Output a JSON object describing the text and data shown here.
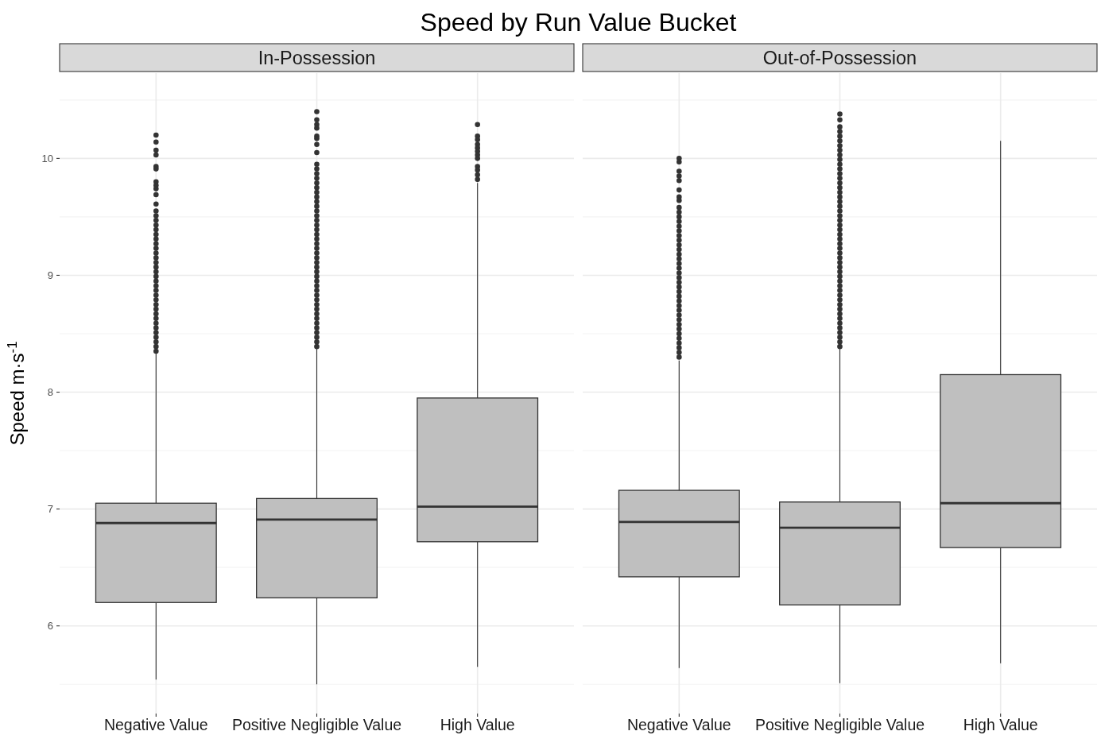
{
  "chart_data": [
    {
      "type": "box",
      "title": "Speed by Run Value Bucket",
      "subtitle": "In-Possession",
      "ylabel": "Speed m·s$^{-1}$",
      "categories": [
        "Negative Value",
        "Positive Negligible Value",
        "High Value"
      ],
      "series": [
        {
          "color": "#bfbfbf",
          "boxes": [
            {
              "low": 5.54,
              "q1": 6.2,
              "median": 6.88,
              "q3": 7.05,
              "high": 8.33,
              "outliers": [
                10.2,
                10.14,
                10.07,
                10.03,
                9.93,
                9.91,
                9.8,
                9.77,
                9.74,
                9.69,
                9.61,
                9.55,
                9.51,
                9.47,
                9.43,
                9.39,
                9.35,
                9.31,
                9.27,
                9.23,
                9.19,
                9.15,
                9.11,
                9.07,
                9.03,
                8.99,
                8.95,
                8.91,
                8.87,
                8.83,
                8.79,
                8.75,
                8.71,
                8.67,
                8.63,
                8.59,
                8.55,
                8.51,
                8.47,
                8.43,
                8.39,
                8.35
              ]
            },
            {
              "low": 5.5,
              "q1": 6.24,
              "median": 6.91,
              "q3": 7.09,
              "high": 8.37,
              "outliers": [
                10.4,
                10.33,
                10.29,
                10.26,
                10.19,
                10.17,
                10.12,
                10.05,
                9.95,
                9.91,
                9.87,
                9.83,
                9.79,
                9.75,
                9.71,
                9.67,
                9.63,
                9.59,
                9.55,
                9.51,
                9.47,
                9.43,
                9.39,
                9.35,
                9.31,
                9.27,
                9.23,
                9.19,
                9.15,
                9.11,
                9.07,
                9.03,
                8.99,
                8.95,
                8.91,
                8.87,
                8.83,
                8.79,
                8.75,
                8.71,
                8.67,
                8.63,
                8.59,
                8.55,
                8.51,
                8.47,
                8.43,
                8.39
              ]
            },
            {
              "low": 5.65,
              "q1": 6.72,
              "median": 7.02,
              "q3": 7.95,
              "high": 9.79,
              "outliers": [
                10.29,
                10.19,
                10.16,
                10.12,
                10.09,
                10.06,
                10.03,
                10.0,
                9.93,
                9.9,
                9.86,
                9.82
              ]
            }
          ]
        }
      ],
      "ylim": [
        5.25,
        10.73
      ],
      "yticks": [
        {
          "value": 5.5,
          "label": null
        },
        6,
        {
          "value": 6.5,
          "label": null
        },
        7,
        {
          "value": 7.5,
          "label": null
        },
        8,
        {
          "value": 8.5,
          "label": null
        },
        9,
        {
          "value": 9.5,
          "label": null
        },
        10,
        {
          "value": 10.5,
          "label": null
        }
      ],
      "grid": true
    },
    {
      "type": "box",
      "subtitle": "Out-of-Possession",
      "categories": [
        "Negative Value",
        "Positive Negligible Value",
        "High Value"
      ],
      "series": [
        {
          "color": "#bfbfbf",
          "boxes": [
            {
              "low": 5.64,
              "q1": 6.42,
              "median": 6.89,
              "q3": 7.16,
              "high": 8.27,
              "outliers": [
                10.0,
                9.97,
                9.89,
                9.85,
                9.81,
                9.73,
                9.67,
                9.64,
                9.58,
                9.54,
                9.5,
                9.46,
                9.42,
                9.38,
                9.34,
                9.3,
                9.26,
                9.22,
                9.18,
                9.14,
                9.1,
                9.06,
                9.02,
                8.98,
                8.94,
                8.9,
                8.86,
                8.82,
                8.78,
                8.74,
                8.7,
                8.66,
                8.62,
                8.58,
                8.54,
                8.5,
                8.46,
                8.42,
                8.38,
                8.34,
                8.3
              ]
            },
            {
              "low": 5.51,
              "q1": 6.18,
              "median": 6.84,
              "q3": 7.06,
              "high": 8.37,
              "outliers": [
                10.38,
                10.33,
                10.27,
                10.23,
                10.19,
                10.15,
                10.11,
                10.07,
                10.03,
                9.99,
                9.95,
                9.91,
                9.87,
                9.83,
                9.79,
                9.75,
                9.71,
                9.67,
                9.63,
                9.59,
                9.55,
                9.51,
                9.47,
                9.43,
                9.39,
                9.35,
                9.31,
                9.27,
                9.23,
                9.19,
                9.15,
                9.11,
                9.07,
                9.03,
                8.99,
                8.95,
                8.91,
                8.87,
                8.83,
                8.79,
                8.75,
                8.71,
                8.67,
                8.63,
                8.59,
                8.55,
                8.51,
                8.47,
                8.43,
                8.39
              ]
            },
            {
              "low": 5.68,
              "q1": 6.67,
              "median": 7.05,
              "q3": 8.15,
              "high": 10.15
            }
          ]
        }
      ],
      "ylim": [
        5.25,
        10.73
      ],
      "yticks": [
        {
          "value": 5.5,
          "label": null
        },
        6,
        {
          "value": 6.5,
          "label": null
        },
        7,
        {
          "value": 7.5,
          "label": null
        },
        8,
        {
          "value": 8.5,
          "label": null
        },
        9,
        {
          "value": 9.5,
          "label": null
        },
        10,
        {
          "value": 10.5,
          "label": null
        }
      ],
      "grid": true,
      "tick_labels": "x"
    }
  ]
}
